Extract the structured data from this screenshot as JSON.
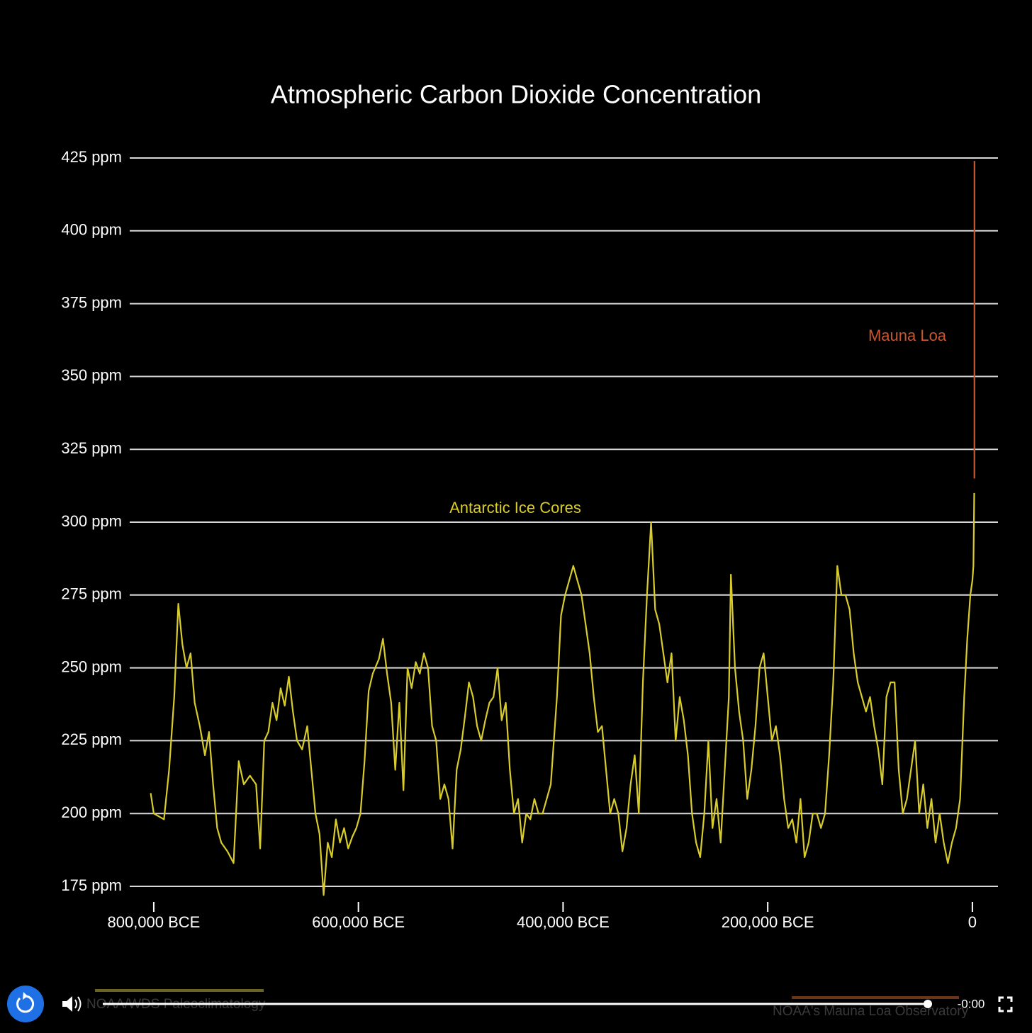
{
  "chart_data": {
    "type": "line",
    "title": "Atmospheric Carbon Dioxide Concentration",
    "xlim": [
      -823500,
      25000
    ],
    "xticks": [
      {
        "value": -800000,
        "label": "800,000 BCE"
      },
      {
        "value": -600000,
        "label": "600,000 BCE"
      },
      {
        "value": -400000,
        "label": "400,000 BCE"
      },
      {
        "value": -200000,
        "label": "200,000 BCE"
      },
      0
    ],
    "ylim": [
      170,
      430
    ],
    "yticks": [
      {
        "value": 175,
        "label": "175 ppm"
      },
      {
        "value": 200,
        "label": "200 ppm"
      },
      {
        "value": 225,
        "label": "225 ppm"
      },
      {
        "value": 250,
        "label": "250 ppm"
      },
      {
        "value": 275,
        "label": "275 ppm"
      },
      {
        "value": 300,
        "label": "300 ppm"
      },
      {
        "value": 325,
        "label": "325 ppm"
      },
      {
        "value": 350,
        "label": "350 ppm"
      },
      {
        "value": 375,
        "label": "375 ppm"
      },
      {
        "value": 400,
        "label": "400 ppm"
      },
      {
        "value": 425,
        "label": "425 ppm"
      }
    ],
    "grid": true,
    "series": [
      {
        "name": "Antarctic Ice Cores",
        "color": "#d8cc2c",
        "x": [
          -803000,
          -800000,
          -795000,
          -790000,
          -785000,
          -780000,
          -776000,
          -772000,
          -768000,
          -764000,
          -760000,
          -755000,
          -750000,
          -746000,
          -742000,
          -738000,
          -734000,
          -728000,
          -722000,
          -717000,
          -712000,
          -706000,
          -700000,
          -696000,
          -692000,
          -688000,
          -684000,
          -680000,
          -676000,
          -672000,
          -668000,
          -664000,
          -660000,
          -655000,
          -650000,
          -646000,
          -642000,
          -638000,
          -634000,
          -630000,
          -626000,
          -622000,
          -618000,
          -614000,
          -610000,
          -606000,
          -602000,
          -598000,
          -594000,
          -590000,
          -586000,
          -580000,
          -576000,
          -572000,
          -568000,
          -564000,
          -560000,
          -556000,
          -552000,
          -548000,
          -544000,
          -540000,
          -536000,
          -532000,
          -528000,
          -524000,
          -520000,
          -516000,
          -512000,
          -508000,
          -504000,
          -500000,
          -496000,
          -492000,
          -488000,
          -484000,
          -480000,
          -476000,
          -472000,
          -468000,
          -464000,
          -460000,
          -456000,
          -452000,
          -448000,
          -444000,
          -440000,
          -436000,
          -432000,
          -428000,
          -424000,
          -420000,
          -416000,
          -412000,
          -406000,
          -402000,
          -398000,
          -394000,
          -390000,
          -386000,
          -382000,
          -378000,
          -374000,
          -370000,
          -366000,
          -362000,
          -358000,
          -354000,
          -350000,
          -346000,
          -342000,
          -338000,
          -334000,
          -330000,
          -326000,
          -322000,
          -318000,
          -314000,
          -310000,
          -306000,
          -302000,
          -298000,
          -294000,
          -290000,
          -286000,
          -282000,
          -278000,
          -274000,
          -270000,
          -266000,
          -262000,
          -258000,
          -254000,
          -250000,
          -246000,
          -242000,
          -238000,
          -236000,
          -232000,
          -228000,
          -224000,
          -220000,
          -216000,
          -212000,
          -208000,
          -204000,
          -200000,
          -196000,
          -192000,
          -188000,
          -184000,
          -180000,
          -176000,
          -172000,
          -168000,
          -164000,
          -160000,
          -156000,
          -152000,
          -148000,
          -144000,
          -140000,
          -136000,
          -132000,
          -128000,
          -124000,
          -120000,
          -116000,
          -112000,
          -108000,
          -104000,
          -100000,
          -96000,
          -92000,
          -88000,
          -84000,
          -80000,
          -76000,
          -72000,
          -68000,
          -64000,
          -60000,
          -56000,
          -52000,
          -48000,
          -44000,
          -40000,
          -36000,
          -32000,
          -28000,
          -24000,
          -20000,
          -16000,
          -12000,
          -8000,
          -5000,
          -2000,
          0,
          1000,
          1800
        ],
        "values": [
          207,
          200,
          199,
          198,
          215,
          240,
          272,
          258,
          250,
          255,
          238,
          230,
          220,
          228,
          210,
          195,
          190,
          187,
          183,
          218,
          210,
          213,
          210,
          188,
          225,
          228,
          238,
          232,
          243,
          237,
          247,
          235,
          225,
          222,
          230,
          215,
          200,
          193,
          172,
          190,
          185,
          198,
          190,
          195,
          188,
          192,
          195,
          200,
          218,
          242,
          248,
          253,
          260,
          248,
          238,
          215,
          238,
          208,
          250,
          243,
          252,
          248,
          255,
          250,
          230,
          225,
          205,
          210,
          205,
          188,
          215,
          222,
          233,
          245,
          240,
          230,
          225,
          232,
          238,
          240,
          250,
          232,
          238,
          215,
          200,
          205,
          190,
          200,
          198,
          205,
          200,
          200,
          205,
          210,
          240,
          268,
          275,
          280,
          285,
          280,
          275,
          265,
          255,
          240,
          228,
          230,
          215,
          200,
          205,
          200,
          187,
          195,
          210,
          220,
          200,
          245,
          275,
          300,
          270,
          265,
          255,
          245,
          255,
          225,
          240,
          232,
          220,
          200,
          190,
          185,
          200,
          225,
          195,
          205,
          190,
          215,
          240,
          282,
          250,
          235,
          225,
          205,
          215,
          230,
          250,
          255,
          240,
          225,
          230,
          220,
          205,
          195,
          198,
          190,
          205,
          185,
          190,
          200,
          200,
          195,
          200,
          220,
          245,
          285,
          275,
          275,
          270,
          255,
          245,
          240,
          235,
          240,
          230,
          222,
          210,
          240,
          245,
          245,
          215,
          200,
          205,
          215,
          225,
          200,
          210,
          195,
          205,
          190,
          200,
          190,
          183,
          190,
          195,
          205,
          240,
          260,
          275,
          280,
          285,
          310
        ]
      },
      {
        "name": "Mauna Loa",
        "color": "#c8562f",
        "x": [
          1958,
          1980,
          2000,
          2023
        ],
        "values": [
          315,
          339,
          370,
          424
        ]
      }
    ]
  },
  "sources": [
    "NOAA/WDS Paleoclimatology",
    "NOAA's Mauna Loa Observatory"
  ],
  "player": {
    "time": "-0:00"
  }
}
